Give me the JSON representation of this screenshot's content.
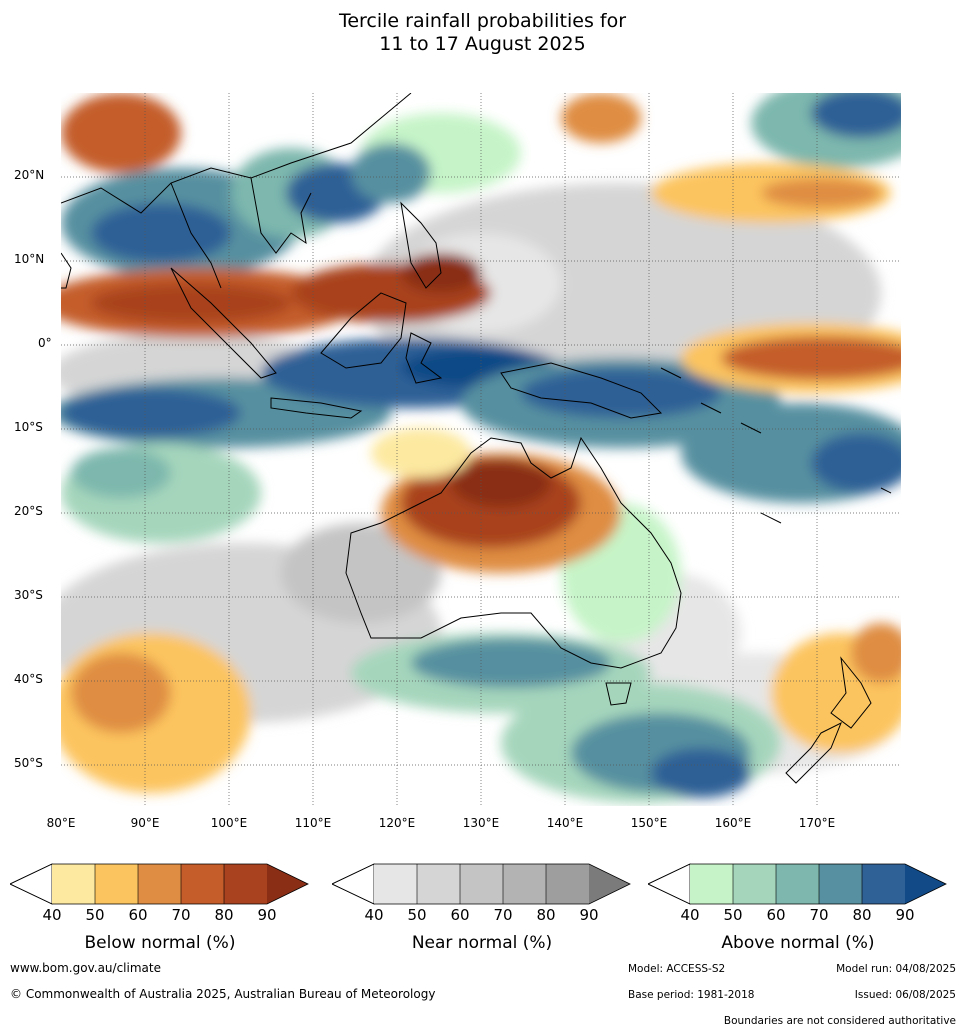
{
  "title_line1": "Tercile rainfall probabilities for",
  "title_line2": "11 to 17 August 2025",
  "map": {
    "lat_labels": [
      "20°N",
      "10°N",
      "0°",
      "10°S",
      "20°S",
      "30°S",
      "40°S",
      "50°S"
    ],
    "lon_labels": [
      "80°E",
      "90°E",
      "100°E",
      "110°E",
      "120°E",
      "130°E",
      "140°E",
      "150°E",
      "160°E",
      "170°E"
    ],
    "extent": {
      "lon_min": 80,
      "lon_max": 180,
      "lat_min": -55,
      "lat_max": 30
    }
  },
  "legends": {
    "below": {
      "label": "Below normal (%)",
      "ticks": [
        "40",
        "50",
        "60",
        "70",
        "80",
        "90"
      ],
      "colors": [
        "#fde9a0",
        "#fcc45e",
        "#df8d43",
        "#c45d2a",
        "#a9431f",
        "#8a2e16"
      ]
    },
    "near": {
      "label": "Near normal (%)",
      "ticks": [
        "40",
        "50",
        "60",
        "70",
        "80",
        "90"
      ],
      "colors": [
        "#e6e6e6",
        "#d5d5d5",
        "#c4c4c4",
        "#b3b3b3",
        "#9e9e9e",
        "#7b7b7b"
      ]
    },
    "above": {
      "label": "Above normal (%)",
      "ticks": [
        "40",
        "50",
        "60",
        "70",
        "80",
        "90"
      ],
      "colors": [
        "#c6f4c8",
        "#a5d6bc",
        "#7db7ad",
        "#5790a0",
        "#2f6196",
        "#114a86"
      ]
    }
  },
  "footer": {
    "website": "www.bom.gov.au/climate",
    "copyright": "© Commonwealth of Australia 2025, Australian Bureau of Meteorology",
    "model": "Model: ACCESS-S2",
    "model_run": "Model run: 04/08/2025",
    "base_period": "Base period: 1981-2018",
    "issued": "Issued: 06/08/2025",
    "disclaimer": "Boundaries are not considered authoritative"
  }
}
